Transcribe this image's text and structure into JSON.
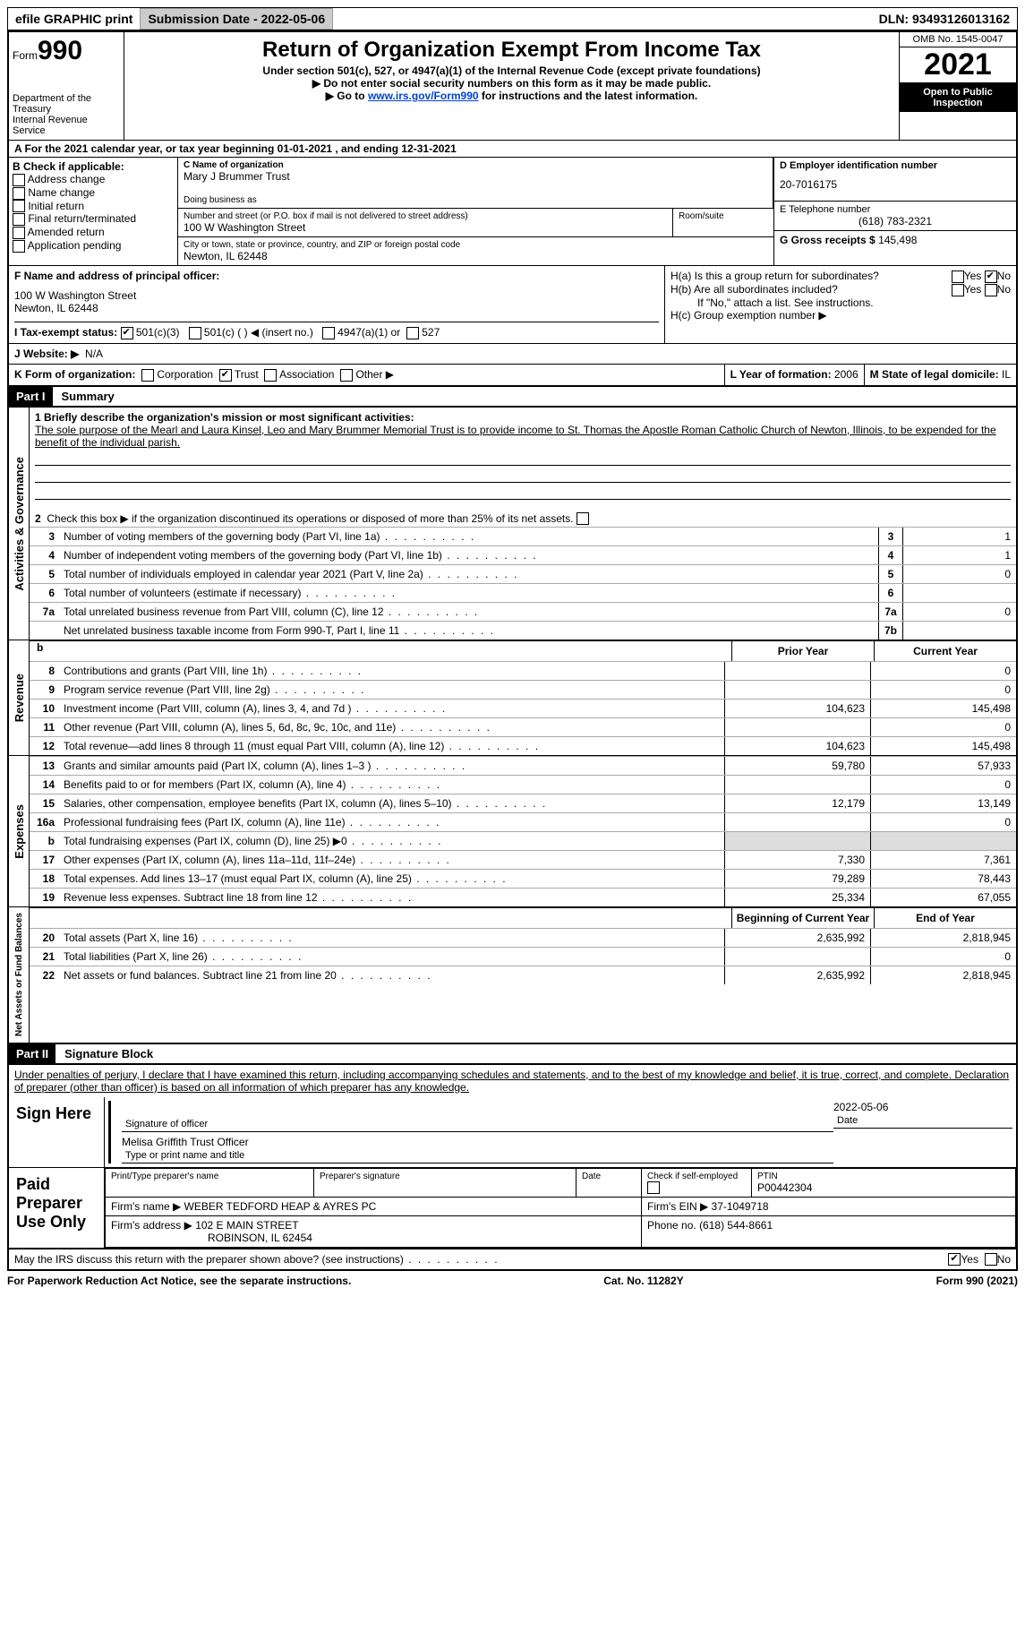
{
  "topbar": {
    "efile": "efile GRAPHIC print",
    "submission_label": "Submission Date - ",
    "submission_date": "2022-05-06",
    "dln_label": "DLN: ",
    "dln": "93493126013162"
  },
  "header": {
    "form_word": "Form",
    "form_num": "990",
    "dept": "Department of the Treasury",
    "irs": "Internal Revenue Service",
    "title": "Return of Organization Exempt From Income Tax",
    "sub1": "Under section 501(c), 527, or 4947(a)(1) of the Internal Revenue Code (except private foundations)",
    "sub2": "▶ Do not enter social security numbers on this form as it may be made public.",
    "sub3_pre": "▶ Go to ",
    "sub3_link": "www.irs.gov/Form990",
    "sub3_post": " for instructions and the latest information.",
    "omb": "OMB No. 1545-0047",
    "year": "2021",
    "inspect": "Open to Public Inspection"
  },
  "rowA": "A For the 2021 calendar year, or tax year beginning 01-01-2021    , and ending 12-31-2021",
  "colB": {
    "label": "B Check if applicable:",
    "items": [
      "Address change",
      "Name change",
      "Initial return",
      "Final return/terminated",
      "Amended return",
      "Application pending"
    ]
  },
  "colC": {
    "name_label": "C Name of organization",
    "name": "Mary J Brummer Trust",
    "dba_label": "Doing business as",
    "addr_label": "Number and street (or P.O. box if mail is not delivered to street address)",
    "room_label": "Room/suite",
    "addr": "100 W Washington Street",
    "city_label": "City or town, state or province, country, and ZIP or foreign postal code",
    "city": "Newton, IL  62448"
  },
  "colD": {
    "ein_label": "D Employer identification number",
    "ein": "20-7016175",
    "phone_label": "E Telephone number",
    "phone": "(618) 783-2321",
    "gross_label": "G Gross receipts $ ",
    "gross": "145,498"
  },
  "sectionF": {
    "f_label": "F Name and address of principal officer:",
    "f_addr": "100 W Washington Street\nNewton, IL  62448",
    "i_label": "I Tax-exempt status:",
    "i_501c3": "501(c)(3)",
    "i_501c": "501(c) (   ) ◀ (insert no.)",
    "i_4947": "4947(a)(1) or",
    "i_527": "527",
    "j_label": "J  Website: ▶",
    "j_val": "N/A",
    "ha": "H(a)  Is this a group return for subordinates?",
    "hb": "H(b)  Are all subordinates included?",
    "hb_note": "If \"No,\" attach a list. See instructions.",
    "hc": "H(c)  Group exemption number ▶",
    "yes": "Yes",
    "no": "No"
  },
  "rowK": {
    "k": "K Form of organization:",
    "opts": [
      "Corporation",
      "Trust",
      "Association",
      "Other ▶"
    ],
    "l": "L Year of formation: ",
    "l_val": "2006",
    "m": "M State of legal domicile: ",
    "m_val": "IL"
  },
  "part1": {
    "hdr": "Part I",
    "title": "Summary",
    "l1_label": "1  Briefly describe the organization's mission or most significant activities:",
    "l1_text": "The sole purpose of the Mearl and Laura Kinsel, Leo and Mary Brummer Memorial Trust is to provide income to St. Thomas the Apostle Roman Catholic Church of Newton, Illinois, to be expended for the benefit of the individual parish.",
    "l2": "Check this box ▶     if the organization discontinued its operations or disposed of more than 25% of its net assets.",
    "lines": [
      {
        "n": "3",
        "t": "Number of voting members of the governing body (Part VI, line 1a)",
        "box": "3",
        "v": "1"
      },
      {
        "n": "4",
        "t": "Number of independent voting members of the governing body (Part VI, line 1b)",
        "box": "4",
        "v": "1"
      },
      {
        "n": "5",
        "t": "Total number of individuals employed in calendar year 2021 (Part V, line 2a)",
        "box": "5",
        "v": "0"
      },
      {
        "n": "6",
        "t": "Total number of volunteers (estimate if necessary)",
        "box": "6",
        "v": ""
      },
      {
        "n": "7a",
        "t": "Total unrelated business revenue from Part VIII, column (C), line 12",
        "box": "7a",
        "v": "0"
      },
      {
        "n": "",
        "t": "Net unrelated business taxable income from Form 990-T, Part I, line 11",
        "box": "7b",
        "v": ""
      }
    ]
  },
  "vtabs": {
    "act": "Activities & Governance",
    "rev": "Revenue",
    "exp": "Expenses",
    "net": "Net Assets or Fund Balances"
  },
  "cols": {
    "prior": "Prior Year",
    "current": "Current Year",
    "boy": "Beginning of Current Year",
    "eoy": "End of Year"
  },
  "revenue": [
    {
      "n": "8",
      "t": "Contributions and grants (Part VIII, line 1h)",
      "p": "",
      "c": "0"
    },
    {
      "n": "9",
      "t": "Program service revenue (Part VIII, line 2g)",
      "p": "",
      "c": "0"
    },
    {
      "n": "10",
      "t": "Investment income (Part VIII, column (A), lines 3, 4, and 7d )",
      "p": "104,623",
      "c": "145,498"
    },
    {
      "n": "11",
      "t": "Other revenue (Part VIII, column (A), lines 5, 6d, 8c, 9c, 10c, and 11e)",
      "p": "",
      "c": "0"
    },
    {
      "n": "12",
      "t": "Total revenue—add lines 8 through 11 (must equal Part VIII, column (A), line 12)",
      "p": "104,623",
      "c": "145,498"
    }
  ],
  "expenses": [
    {
      "n": "13",
      "t": "Grants and similar amounts paid (Part IX, column (A), lines 1–3 )",
      "p": "59,780",
      "c": "57,933"
    },
    {
      "n": "14",
      "t": "Benefits paid to or for members (Part IX, column (A), line 4)",
      "p": "",
      "c": "0"
    },
    {
      "n": "15",
      "t": "Salaries, other compensation, employee benefits (Part IX, column (A), lines 5–10)",
      "p": "12,179",
      "c": "13,149"
    },
    {
      "n": "16a",
      "t": "Professional fundraising fees (Part IX, column (A), line 11e)",
      "p": "",
      "c": "0"
    },
    {
      "n": "b",
      "t": "Total fundraising expenses (Part IX, column (D), line 25) ▶0",
      "p": "",
      "c": "",
      "shade": true
    },
    {
      "n": "17",
      "t": "Other expenses (Part IX, column (A), lines 11a–11d, 11f–24e)",
      "p": "7,330",
      "c": "7,361"
    },
    {
      "n": "18",
      "t": "Total expenses. Add lines 13–17 (must equal Part IX, column (A), line 25)",
      "p": "79,289",
      "c": "78,443"
    },
    {
      "n": "19",
      "t": "Revenue less expenses. Subtract line 18 from line 12",
      "p": "25,334",
      "c": "67,055"
    }
  ],
  "netassets": [
    {
      "n": "20",
      "t": "Total assets (Part X, line 16)",
      "p": "2,635,992",
      "c": "2,818,945"
    },
    {
      "n": "21",
      "t": "Total liabilities (Part X, line 26)",
      "p": "",
      "c": "0"
    },
    {
      "n": "22",
      "t": "Net assets or fund balances. Subtract line 21 from line 20",
      "p": "2,635,992",
      "c": "2,818,945"
    }
  ],
  "part2": {
    "hdr": "Part II",
    "title": "Signature Block",
    "decl": "Under penalties of perjury, I declare that I have examined this return, including accompanying schedules and statements, and to the best of my knowledge and belief, it is true, correct, and complete. Declaration of preparer (other than officer) is based on all information of which preparer has any knowledge.",
    "sign_here": "Sign Here",
    "sig_officer": "Signature of officer",
    "date_label": "Date",
    "sig_date": "2022-05-06",
    "name": "Melisa Griffith Trust Officer",
    "name_label": "Type or print name and title",
    "paid": "Paid Preparer Use Only",
    "prep_name_label": "Print/Type preparer's name",
    "prep_sig_label": "Preparer's signature",
    "check_self": "Check      if self-employed",
    "ptin_label": "PTIN",
    "ptin": "P00442304",
    "firm_name_label": "Firm's name    ▶ ",
    "firm_name": "WEBER TEDFORD HEAP & AYRES PC",
    "firm_ein_label": "Firm's EIN ▶ ",
    "firm_ein": "37-1049718",
    "firm_addr_label": "Firm's address ▶ ",
    "firm_addr": "102 E MAIN STREET",
    "firm_city": "ROBINSON, IL  62454",
    "firm_phone_label": "Phone no. ",
    "firm_phone": "(618) 544-8661",
    "discuss": "May the IRS discuss this return with the preparer shown above? (see instructions)"
  },
  "footer": {
    "left": "For Paperwork Reduction Act Notice, see the separate instructions.",
    "mid": "Cat. No. 11282Y",
    "right": "Form 990 (2021)"
  }
}
